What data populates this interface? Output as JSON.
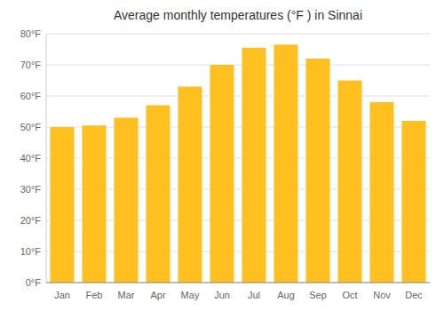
{
  "chart_data": {
    "type": "bar",
    "title": "Average monthly temperatures (°F ) in Sinnai",
    "categories": [
      "Jan",
      "Feb",
      "Mar",
      "Apr",
      "May",
      "Jun",
      "Jul",
      "Aug",
      "Sep",
      "Oct",
      "Nov",
      "Dec"
    ],
    "values": [
      50,
      50.5,
      53,
      57,
      63,
      70,
      75.5,
      76.5,
      72,
      65,
      58,
      52
    ],
    "color": "#FFC020",
    "ylim": [
      0,
      80
    ],
    "yticks": [
      {
        "value": 0,
        "label": "0°F"
      },
      {
        "value": 10,
        "label": "10°F"
      },
      {
        "value": 20,
        "label": "20°F"
      },
      {
        "value": 30,
        "label": "30°F"
      },
      {
        "value": 40,
        "label": "40°F"
      },
      {
        "value": 50,
        "label": "50°F"
      },
      {
        "value": 60,
        "label": "60°F"
      },
      {
        "value": 70,
        "label": "70°F"
      },
      {
        "value": 80,
        "label": "80°F"
      }
    ],
    "grid": true
  }
}
